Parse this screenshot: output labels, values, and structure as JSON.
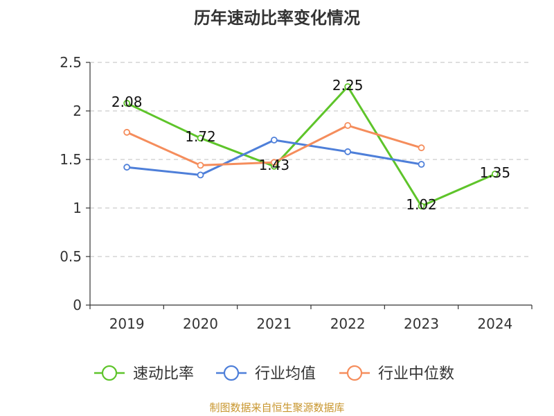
{
  "chart_data": {
    "type": "line",
    "title": "历年速动比率变化情况",
    "categories": [
      "2019",
      "2020",
      "2021",
      "2022",
      "2023",
      "2024"
    ],
    "ylim": [
      0,
      2.5
    ],
    "yticks": [
      "0",
      "0.5",
      "1",
      "1.5",
      "2",
      "2.5"
    ],
    "ytick_values": [
      0,
      0.5,
      1,
      1.5,
      2,
      2.5
    ],
    "grid": true,
    "legend_position": "bottom",
    "series": [
      {
        "name": "速动比率",
        "color": "#5ec42a",
        "values": [
          2.08,
          1.72,
          1.43,
          2.25,
          1.02,
          1.35
        ],
        "labels": [
          "2.08",
          "1.72",
          "1.43",
          "2.25",
          "1.02",
          "1.35"
        ],
        "show_labels": true
      },
      {
        "name": "行业均值",
        "color": "#4e7fd9",
        "values": [
          1.42,
          1.34,
          1.7,
          1.58,
          1.45,
          null
        ],
        "show_labels": false
      },
      {
        "name": "行业中位数",
        "color": "#f58d5c",
        "values": [
          1.78,
          1.44,
          1.47,
          1.85,
          1.62,
          null
        ],
        "show_labels": false
      }
    ],
    "source": "制图数据来自恒生聚源数据库"
  }
}
